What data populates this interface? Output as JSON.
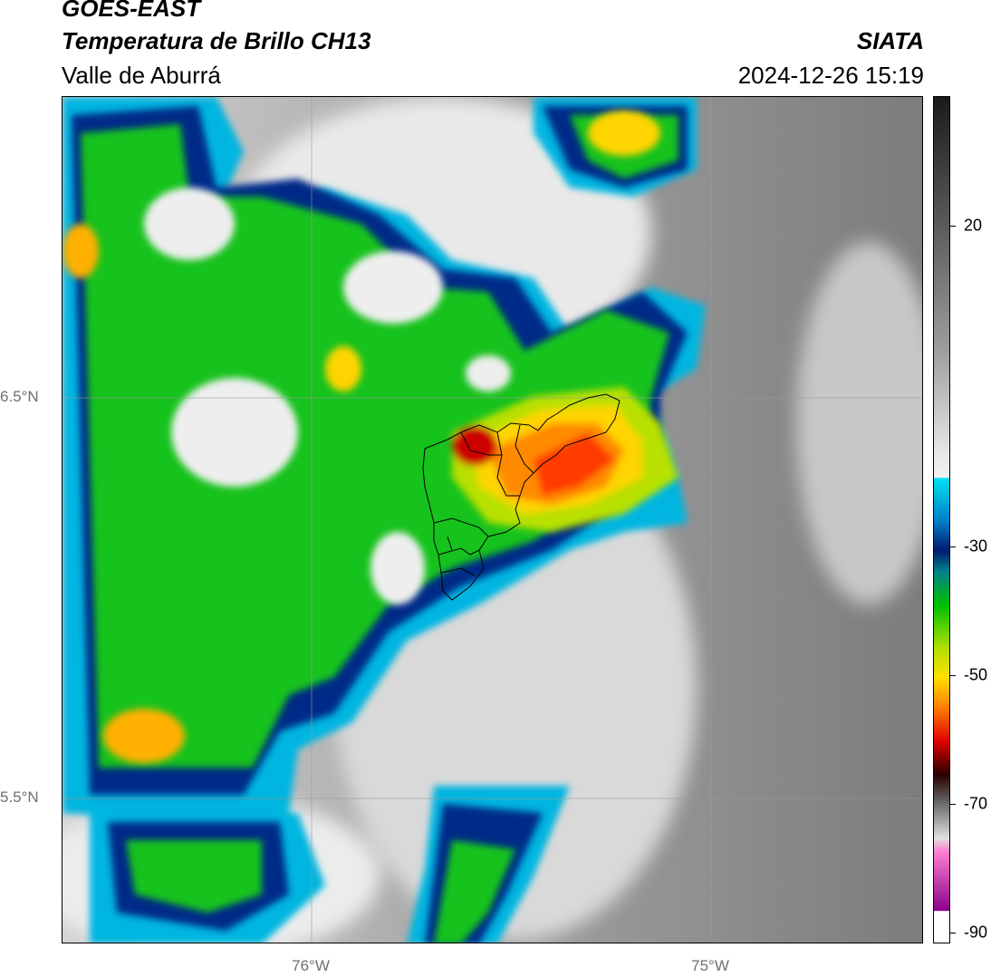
{
  "header": {
    "satellite": "GOES-EAST",
    "product": "Temperatura de Brillo CH13",
    "region": "Valle de Aburrá",
    "agency": "SIATA",
    "datetime": "2024-12-26 15:19"
  },
  "map": {
    "lat_labels": [
      "6.5°N",
      "5.5°N"
    ],
    "lon_labels": [
      "76°W",
      "75°W"
    ],
    "gridlines": true,
    "basemap": "brightness-temperature field with Valle de Aburrá municipal boundaries",
    "colors": {
      "very_cold": "#b20000",
      "cold": "#ff4a00",
      "mid_cold": "#ffd400",
      "green": "#00c000",
      "dark_blue": "#00217a",
      "cyan": "#00c8e8",
      "warm_gray": "#8a8a8a",
      "light_gray": "#ececec"
    }
  },
  "colorbar": {
    "ticks": [
      "20",
      "-30",
      "-50",
      "-70",
      "-90"
    ],
    "tick_values": [
      20,
      -30,
      -50,
      -70,
      -90
    ],
    "range": [
      -92,
      35
    ]
  }
}
